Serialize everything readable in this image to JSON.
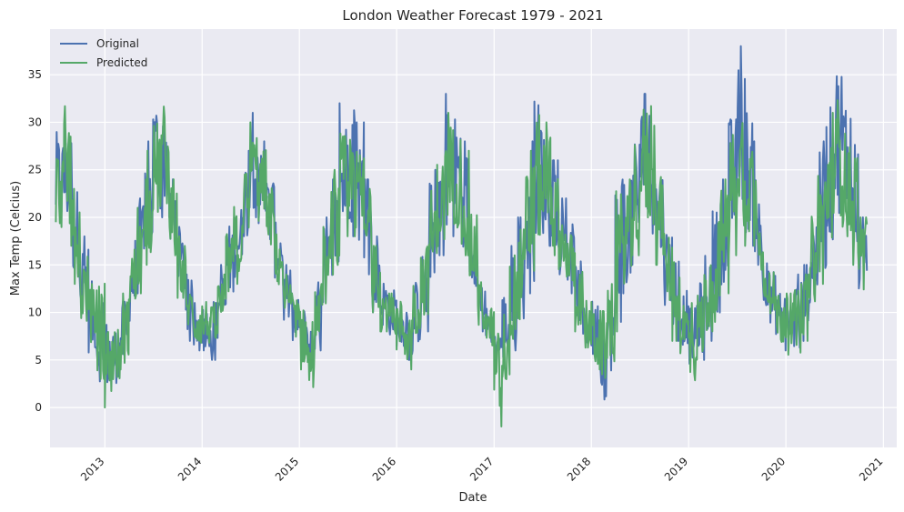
{
  "chart_data": {
    "type": "line",
    "title": "London Weather Forecast 1979 - 2021",
    "xlabel": "Date",
    "ylabel": "Max Temp (Celcius)",
    "x_range": [
      "2012-06-09",
      "2021-02-20"
    ],
    "data_range": [
      "2012-07-01",
      "2020-11-01"
    ],
    "ylim": [
      -4.2,
      39.8
    ],
    "xticks": [
      "2013",
      "2014",
      "2015",
      "2016",
      "2017",
      "2018",
      "2019",
      "2020",
      "2021"
    ],
    "yticks": [
      0,
      5,
      10,
      15,
      20,
      25,
      30,
      35
    ],
    "grid": true,
    "legend_position": "top-left",
    "colors": {
      "background": "#EAEAF2",
      "grid": "#FFFFFF",
      "original": "#4C72B0",
      "predicted": "#55A868"
    },
    "series": [
      {
        "name": "Original",
        "color": "#4C72B0",
        "x": [
          "2012-07",
          "2012-08",
          "2012-09",
          "2012-10",
          "2012-11",
          "2012-12",
          "2013-01",
          "2013-02",
          "2013-03",
          "2013-04",
          "2013-05",
          "2013-06",
          "2013-07",
          "2013-08",
          "2013-09",
          "2013-10",
          "2013-11",
          "2013-12",
          "2014-01",
          "2014-02",
          "2014-03",
          "2014-04",
          "2014-05",
          "2014-06",
          "2014-07",
          "2014-08",
          "2014-09",
          "2014-10",
          "2014-11",
          "2014-12",
          "2015-01",
          "2015-02",
          "2015-03",
          "2015-04",
          "2015-05",
          "2015-06",
          "2015-07",
          "2015-08",
          "2015-09",
          "2015-10",
          "2015-11",
          "2015-12",
          "2016-01",
          "2016-02",
          "2016-03",
          "2016-04",
          "2016-05",
          "2016-06",
          "2016-07",
          "2016-08",
          "2016-09",
          "2016-10",
          "2016-11",
          "2016-12",
          "2017-01",
          "2017-02",
          "2017-03",
          "2017-04",
          "2017-05",
          "2017-06",
          "2017-07",
          "2017-08",
          "2017-09",
          "2017-10",
          "2017-11",
          "2017-12",
          "2018-01",
          "2018-02",
          "2018-03",
          "2018-04",
          "2018-05",
          "2018-06",
          "2018-07",
          "2018-08",
          "2018-09",
          "2018-10",
          "2018-11",
          "2018-12",
          "2019-01",
          "2019-02",
          "2019-03",
          "2019-04",
          "2019-05",
          "2019-06",
          "2019-07",
          "2019-08",
          "2019-09",
          "2019-10",
          "2019-11",
          "2019-12",
          "2020-01",
          "2020-02",
          "2020-03",
          "2020-04",
          "2020-05",
          "2020-06",
          "2020-07",
          "2020-08",
          "2020-09",
          "2020-10"
        ],
        "high": [
          30,
          30,
          24,
          18,
          14,
          11,
          10,
          9,
          12,
          19,
          22,
          28,
          34,
          33,
          25,
          19,
          14,
          11,
          11,
          12,
          15,
          20,
          22,
          27,
          31,
          28,
          25,
          20,
          15,
          12,
          11,
          9,
          14,
          20,
          24,
          32,
          36,
          30,
          24,
          18,
          14,
          13,
          11,
          12,
          14,
          17,
          25,
          28,
          33,
          32,
          28,
          22,
          15,
          11,
          8,
          13,
          17,
          20,
          28,
          34,
          30,
          26,
          22,
          20,
          16,
          11,
          12,
          11,
          13,
          28,
          25,
          30,
          33,
          33,
          26,
          20,
          17,
          13,
          11,
          14,
          17,
          22,
          24,
          32,
          38,
          33,
          28,
          19,
          15,
          13,
          12,
          14,
          15,
          22,
          28,
          33,
          38,
          35,
          30,
          20
        ],
        "low": [
          17,
          18,
          13,
          9,
          5,
          2,
          1,
          2,
          3,
          8,
          12,
          15,
          19,
          20,
          15,
          11,
          7,
          6,
          6,
          5,
          7,
          11,
          13,
          17,
          20,
          18,
          16,
          13,
          8,
          6,
          5,
          4,
          6,
          10,
          13,
          16,
          18,
          16,
          14,
          10,
          8,
          7,
          6,
          5,
          6,
          8,
          12,
          16,
          18,
          18,
          16,
          12,
          8,
          6,
          5,
          4,
          6,
          8,
          12,
          16,
          17,
          16,
          14,
          12,
          8,
          6,
          4,
          0,
          3,
          7,
          12,
          15,
          18,
          17,
          15,
          10,
          7,
          6,
          4,
          5,
          7,
          9,
          12,
          15,
          18,
          17,
          15,
          10,
          7,
          6,
          6,
          5,
          7,
          9,
          13,
          16,
          19,
          18,
          15,
          11
        ]
      },
      {
        "name": "Predicted",
        "color": "#55A868",
        "x": [
          "2012-07",
          "2012-08",
          "2012-09",
          "2012-10",
          "2012-11",
          "2012-12",
          "2013-01",
          "2013-02",
          "2013-03",
          "2013-04",
          "2013-05",
          "2013-06",
          "2013-07",
          "2013-08",
          "2013-09",
          "2013-10",
          "2013-11",
          "2013-12",
          "2014-01",
          "2014-02",
          "2014-03",
          "2014-04",
          "2014-05",
          "2014-06",
          "2014-07",
          "2014-08",
          "2014-09",
          "2014-10",
          "2014-11",
          "2014-12",
          "2015-01",
          "2015-02",
          "2015-03",
          "2015-04",
          "2015-05",
          "2015-06",
          "2015-07",
          "2015-08",
          "2015-09",
          "2015-10",
          "2015-11",
          "2015-12",
          "2016-01",
          "2016-02",
          "2016-03",
          "2016-04",
          "2016-05",
          "2016-06",
          "2016-07",
          "2016-08",
          "2016-09",
          "2016-10",
          "2016-11",
          "2016-12",
          "2017-01",
          "2017-02",
          "2017-03",
          "2017-04",
          "2017-05",
          "2017-06",
          "2017-07",
          "2017-08",
          "2017-09",
          "2017-10",
          "2017-11",
          "2017-12",
          "2018-01",
          "2018-02",
          "2018-03",
          "2018-04",
          "2018-05",
          "2018-06",
          "2018-07",
          "2018-08",
          "2018-09",
          "2018-10",
          "2018-11",
          "2018-12",
          "2019-01",
          "2019-02",
          "2019-03",
          "2019-04",
          "2019-05",
          "2019-06",
          "2019-07",
          "2019-08",
          "2019-09",
          "2019-10",
          "2019-11",
          "2019-12",
          "2020-01",
          "2020-02",
          "2020-03",
          "2020-04",
          "2020-05",
          "2020-06",
          "2020-07",
          "2020-08",
          "2020-09",
          "2020-10"
        ],
        "high": [
          28,
          33,
          23,
          17,
          13,
          14,
          10,
          9,
          12,
          18,
          21,
          27,
          31,
          33,
          24,
          18,
          13,
          12,
          12,
          11,
          14,
          19,
          22,
          26,
          30,
          28,
          24,
          19,
          14,
          12,
          11,
          9,
          13,
          19,
          25,
          30,
          29,
          28,
          23,
          17,
          13,
          12,
          12,
          11,
          14,
          18,
          24,
          27,
          31,
          30,
          27,
          21,
          14,
          11,
          9,
          12,
          16,
          20,
          27,
          32,
          30,
          25,
          21,
          19,
          15,
          12,
          12,
          11,
          13,
          24,
          25,
          30,
          33,
          35,
          26,
          19,
          16,
          12,
          11,
          13,
          16,
          21,
          24,
          30,
          33,
          30,
          27,
          19,
          15,
          13,
          12,
          13,
          14,
          21,
          27,
          31,
          34,
          30,
          29,
          20
        ],
        "low": [
          18,
          17,
          13,
          8,
          6,
          3,
          0,
          2,
          4,
          9,
          12,
          15,
          19,
          20,
          15,
          10,
          8,
          6,
          6,
          6,
          8,
          11,
          13,
          17,
          20,
          18,
          16,
          12,
          8,
          7,
          4,
          -1,
          7,
          10,
          13,
          16,
          18,
          17,
          14,
          10,
          8,
          7,
          5,
          4,
          7,
          9,
          12,
          16,
          18,
          18,
          16,
          12,
          7,
          6,
          -2,
          1,
          6,
          8,
          12,
          16,
          17,
          16,
          14,
          11,
          8,
          5,
          3,
          2,
          4,
          8,
          12,
          16,
          18,
          17,
          15,
          10,
          7,
          5,
          1,
          4,
          7,
          9,
          12,
          16,
          18,
          17,
          15,
          10,
          7,
          6,
          5,
          5,
          7,
          10,
          13,
          16,
          19,
          18,
          15,
          11
        ]
      }
    ]
  }
}
